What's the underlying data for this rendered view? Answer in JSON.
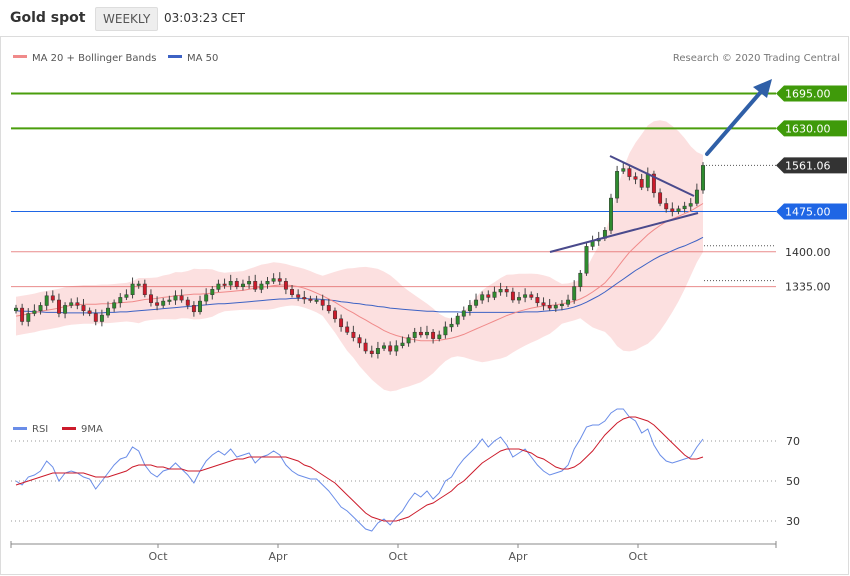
{
  "header": {
    "title": "Gold spot",
    "timeframe": "WEEKLY",
    "time": "03:03:23 CET"
  },
  "legend": {
    "ma20": "MA 20 + Bollinger Bands",
    "ma50": "MA 50",
    "copyright": "Research © 2020 Trading Central"
  },
  "rsi_legend": {
    "rsi": "RSI",
    "ma9": "9MA"
  },
  "colors": {
    "price_up": "#2e8b2e",
    "price_down": "#cc1b2b",
    "ma20": "#f08a8a",
    "ma50": "#3d62c4",
    "resistance": "#4a9e0c",
    "support_line": "#e05b5b",
    "pivot": "#1f66e5",
    "arrow": "#2f5fa7"
  },
  "chart_data": {
    "type": "candlestick",
    "title": "Gold spot",
    "timeframe": "weekly",
    "ylim": [
      1120,
      1735
    ],
    "x_ticks": [
      "Oct",
      "Apr",
      "Oct",
      "Apr",
      "Oct"
    ],
    "price_levels": [
      {
        "label": "1695.00",
        "value": 1695,
        "kind": "resistance"
      },
      {
        "label": "1630.00",
        "value": 1630,
        "kind": "resistance"
      },
      {
        "label": "1561.06",
        "value": 1561.06,
        "kind": "last"
      },
      {
        "label": "1475.00",
        "value": 1475,
        "kind": "pivot"
      },
      {
        "label": "1400.00",
        "value": 1400,
        "kind": "support"
      },
      {
        "label": "1335.00",
        "value": 1335,
        "kind": "support"
      }
    ],
    "close": [
      1295,
      1270,
      1285,
      1290,
      1300,
      1318,
      1310,
      1285,
      1300,
      1305,
      1300,
      1290,
      1285,
      1270,
      1282,
      1295,
      1305,
      1315,
      1320,
      1340,
      1340,
      1320,
      1305,
      1300,
      1308,
      1310,
      1318,
      1310,
      1300,
      1288,
      1308,
      1320,
      1330,
      1340,
      1338,
      1345,
      1335,
      1340,
      1345,
      1330,
      1340,
      1345,
      1350,
      1345,
      1330,
      1320,
      1315,
      1312,
      1310,
      1310,
      1300,
      1290,
      1275,
      1260,
      1250,
      1240,
      1230,
      1215,
      1210,
      1220,
      1225,
      1215,
      1225,
      1230,
      1240,
      1250,
      1245,
      1250,
      1238,
      1245,
      1260,
      1265,
      1280,
      1290,
      1300,
      1310,
      1320,
      1315,
      1325,
      1330,
      1325,
      1310,
      1315,
      1320,
      1315,
      1305,
      1300,
      1295,
      1300,
      1302,
      1310,
      1335,
      1360,
      1410,
      1420,
      1425,
      1440,
      1500,
      1550,
      1555,
      1540,
      1535,
      1520,
      1545,
      1510,
      1490,
      1480,
      1475,
      1480,
      1485,
      1490,
      1515,
      1561
    ],
    "ma20": [
      1280,
      1282,
      1284,
      1286,
      1289,
      1291,
      1293,
      1295,
      1298,
      1300,
      1301,
      1302,
      1302,
      1302,
      1303,
      1303,
      1304,
      1305,
      1306,
      1307,
      1309,
      1311,
      1312,
      1313,
      1315,
      1316,
      1318,
      1319,
      1320,
      1321,
      1321,
      1322,
      1323,
      1324,
      1325,
      1326,
      1327,
      1328,
      1330,
      1332,
      1334,
      1335,
      1337,
      1338,
      1338,
      1337,
      1335,
      1332,
      1328,
      1323,
      1318,
      1312,
      1306,
      1299,
      1292,
      1286,
      1279,
      1273,
      1266,
      1260,
      1253,
      1248,
      1244,
      1241,
      1238,
      1236,
      1234,
      1234,
      1234,
      1235,
      1237,
      1239,
      1242,
      1246,
      1251,
      1256,
      1261,
      1266,
      1271,
      1276,
      1281,
      1285,
      1289,
      1292,
      1295,
      1297,
      1299,
      1300,
      1301,
      1303,
      1305,
      1308,
      1312,
      1318,
      1325,
      1333,
      1342,
      1355,
      1370,
      1385,
      1399,
      1410,
      1421,
      1432,
      1441,
      1449,
      1456,
      1461,
      1466,
      1471,
      1476,
      1483,
      1490
    ],
    "ma50": [
      1290,
      1289,
      1289,
      1288,
      1288,
      1287,
      1287,
      1287,
      1286,
      1286,
      1286,
      1286,
      1286,
      1286,
      1286,
      1287,
      1287,
      1288,
      1288,
      1289,
      1290,
      1291,
      1292,
      1293,
      1294,
      1295,
      1296,
      1297,
      1298,
      1299,
      1300,
      1301,
      1302,
      1303,
      1303,
      1304,
      1305,
      1306,
      1307,
      1308,
      1309,
      1310,
      1311,
      1312,
      1312,
      1313,
      1313,
      1313,
      1312,
      1312,
      1311,
      1310,
      1309,
      1307,
      1306,
      1304,
      1303,
      1301,
      1300,
      1298,
      1297,
      1295,
      1294,
      1293,
      1292,
      1291,
      1290,
      1289,
      1289,
      1288,
      1288,
      1288,
      1288,
      1287,
      1287,
      1287,
      1287,
      1287,
      1287,
      1287,
      1287,
      1287,
      1287,
      1288,
      1288,
      1288,
      1289,
      1290,
      1291,
      1292,
      1294,
      1297,
      1301,
      1306,
      1312,
      1318,
      1325,
      1333,
      1341,
      1349,
      1357,
      1365,
      1372,
      1379,
      1386,
      1392,
      1397,
      1402,
      1407,
      1411,
      1416,
      1421,
      1427
    ],
    "rsi": [
      50,
      48,
      52,
      53,
      55,
      60,
      57,
      50,
      54,
      55,
      54,
      52,
      51,
      46,
      50,
      54,
      58,
      61,
      62,
      67,
      65,
      58,
      54,
      52,
      55,
      56,
      59,
      56,
      53,
      49,
      55,
      60,
      63,
      65,
      63,
      66,
      62,
      63,
      64,
      59,
      62,
      63,
      65,
      63,
      58,
      55,
      53,
      52,
      51,
      51,
      48,
      45,
      41,
      37,
      35,
      32,
      29,
      26,
      25,
      29,
      31,
      28,
      32,
      35,
      40,
      44,
      42,
      45,
      41,
      44,
      50,
      52,
      57,
      61,
      64,
      67,
      71,
      67,
      70,
      72,
      68,
      62,
      64,
      66,
      62,
      58,
      55,
      53,
      54,
      55,
      58,
      66,
      71,
      77,
      78,
      78,
      80,
      84,
      86,
      86,
      82,
      80,
      74,
      76,
      68,
      63,
      60,
      59,
      60,
      61,
      62,
      67,
      71
    ],
    "rsi_ma9": [
      48,
      49,
      50,
      51,
      52,
      53,
      54,
      54,
      54,
      54,
      54,
      54,
      53,
      52,
      52,
      52,
      53,
      54,
      55,
      57,
      58,
      58,
      58,
      57,
      57,
      56,
      56,
      56,
      55,
      55,
      55,
      56,
      57,
      58,
      59,
      60,
      61,
      61,
      62,
      62,
      62,
      62,
      62,
      62,
      62,
      61,
      60,
      58,
      57,
      55,
      53,
      51,
      49,
      46,
      43,
      40,
      37,
      34,
      32,
      31,
      30,
      30,
      30,
      31,
      32,
      34,
      36,
      38,
      39,
      41,
      43,
      45,
      48,
      50,
      53,
      56,
      59,
      61,
      63,
      65,
      66,
      66,
      66,
      65,
      64,
      62,
      61,
      59,
      57,
      56,
      56,
      57,
      59,
      62,
      65,
      69,
      73,
      76,
      79,
      81,
      82,
      82,
      81,
      80,
      78,
      75,
      72,
      69,
      66,
      63,
      61,
      61,
      62
    ],
    "rsi_levels": [
      30,
      50,
      70
    ],
    "rsi_ylim": [
      15,
      90
    ],
    "annotations": [
      "symmetrical triangle",
      "upside arrow to 1695.00"
    ]
  }
}
